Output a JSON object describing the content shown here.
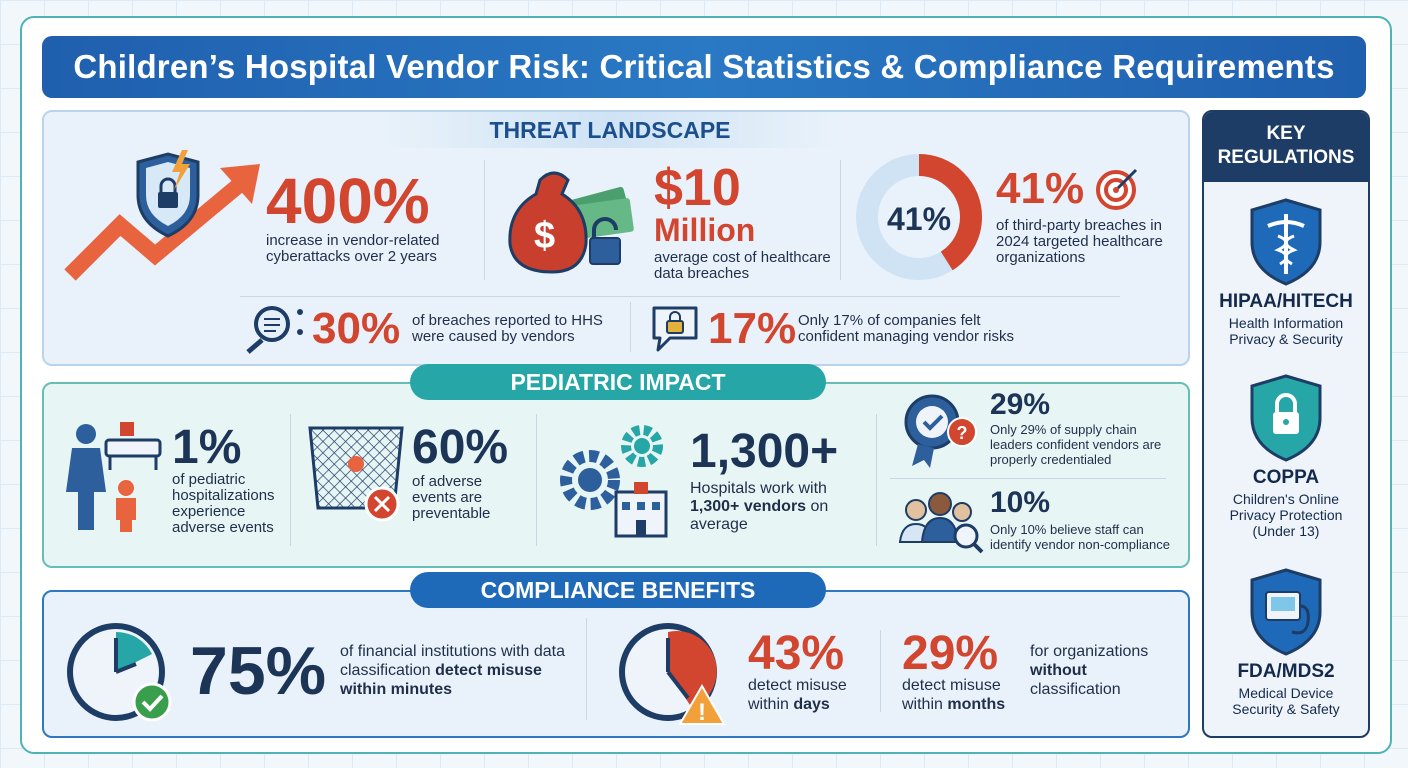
{
  "title": "Children’s Hospital Vendor Risk: Critical Statistics & Compliance Requirements",
  "threat": {
    "heading": "THREAT LANDSCAPE",
    "stat1": {
      "value": "400%",
      "text": "increase in vendor-related cyberattacks over 2 years"
    },
    "stat2": {
      "value": "$10",
      "value2": "Million",
      "text": "average cost of healthcare data breaches"
    },
    "stat3": {
      "donut_label": "41%",
      "donut_fraction": 0.41,
      "value": "41%",
      "text": "of third-party breaches in 2024 targeted healthcare organizations"
    },
    "stat4": {
      "value": "30%",
      "text": "of breaches reported to HHS were caused by vendors"
    },
    "stat5": {
      "value": "17%",
      "text": "Only 17% of companies felt confident managing vendor risks"
    }
  },
  "pediatric": {
    "heading": "PEDIATRIC IMPACT",
    "stat1": {
      "value": "1%",
      "text": "of pediatric hospitalizations experience adverse events"
    },
    "stat2": {
      "value": "60%",
      "text": "of adverse events are preventable"
    },
    "stat3": {
      "value": "1,300+",
      "text_a": "Hospitals work with",
      "text_b": "1,300+ vendors",
      "text_c": "on average"
    },
    "stat4": {
      "value": "29%",
      "text": "Only 29% of supply chain leaders confident vendors are properly credentialed"
    },
    "stat5": {
      "value": "10%",
      "text": "Only 10% believe staff can identify vendor non-compliance"
    }
  },
  "compliance": {
    "heading": "COMPLIANCE BENEFITS",
    "stat1": {
      "value": "75%",
      "text_a": "of financial institutions with data classification",
      "text_b": "detect",
      "text_c": "misuse within minutes"
    },
    "stat2": {
      "value": "43%",
      "text_a": "detect misuse",
      "text_b": "within",
      "text_c": "days"
    },
    "stat3": {
      "value": "29%",
      "text_a": "detect misuse",
      "text_b": "within",
      "text_c": "months"
    },
    "note": {
      "text_a": "for organizations",
      "text_b": "without",
      "text_c": "classification"
    }
  },
  "sidebar": {
    "heading_a": "KEY",
    "heading_b": "REGULATIONS",
    "regs": [
      {
        "name": "HIPAA/HITECH",
        "desc_a": "Health Information",
        "desc_b": "Privacy & Security"
      },
      {
        "name": "COPPA",
        "desc_a": "Children's Online",
        "desc_b": "Privacy Protection",
        "desc_c": "(Under 13)"
      },
      {
        "name": "FDA/MDS2",
        "desc_a": "Medical Device",
        "desc_b": "Security & Safety"
      }
    ]
  },
  "colors": {
    "red": "#d2452f",
    "navy": "#1c3557",
    "blue": "#1f6ab8",
    "teal": "#26a6a6"
  }
}
